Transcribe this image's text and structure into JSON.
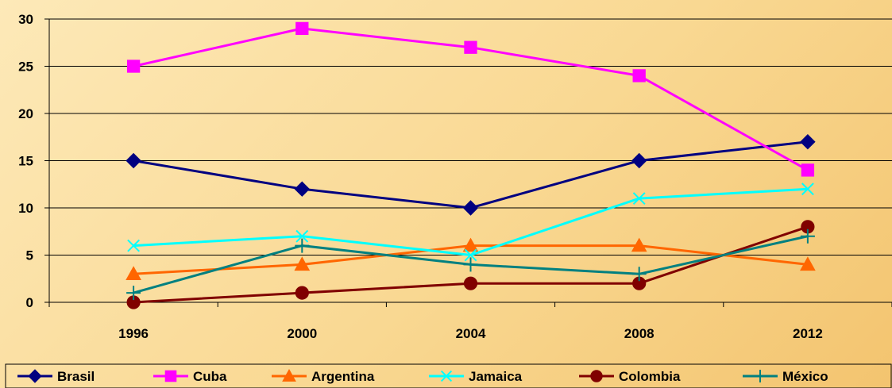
{
  "chart_data": {
    "type": "line",
    "title": "",
    "xlabel": "",
    "ylabel": "",
    "categories": [
      "1996",
      "2000",
      "2004",
      "2008",
      "2012"
    ],
    "ylim": [
      0,
      30
    ],
    "yticks": [
      0,
      5,
      10,
      15,
      20,
      25,
      30
    ],
    "grid": true,
    "legend_position": "bottom",
    "series": [
      {
        "name": "Brasil",
        "values": [
          15,
          12,
          10,
          15,
          17
        ],
        "color": "#000080",
        "marker": "diamond"
      },
      {
        "name": "Cuba",
        "values": [
          25,
          29,
          27,
          24,
          14
        ],
        "color": "#ff00ff",
        "marker": "square"
      },
      {
        "name": "Argentina",
        "values": [
          3,
          4,
          6,
          6,
          4
        ],
        "color": "#ff6600",
        "marker": "triangle"
      },
      {
        "name": "Jamaica",
        "values": [
          6,
          7,
          5,
          11,
          12
        ],
        "color": "#00ffff",
        "marker": "x"
      },
      {
        "name": "Colombia",
        "values": [
          0,
          1,
          2,
          2,
          8
        ],
        "color": "#800000",
        "marker": "circle"
      },
      {
        "name": "México",
        "values": [
          1,
          6,
          4,
          3,
          7
        ],
        "color": "#008080",
        "marker": "plus"
      }
    ]
  }
}
